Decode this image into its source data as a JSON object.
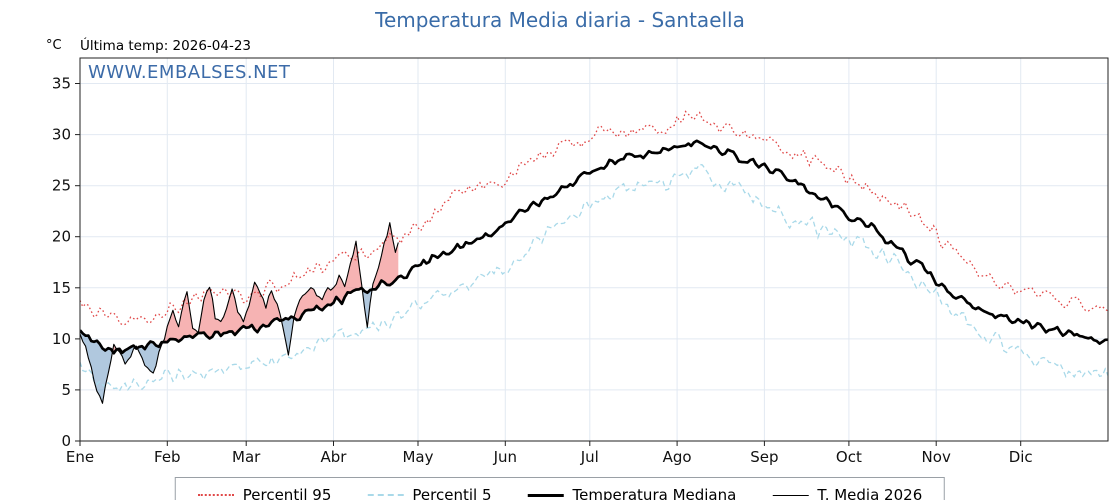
{
  "header": {
    "title": "Temperatura Media diaria - Santaella",
    "unit": "°C",
    "last_temp": "Última temp: 2026-04-23",
    "watermark": "WWW.EMBALSES.NET"
  },
  "legend": [
    {
      "label": "Percentil 95",
      "style": "dotted",
      "color": "#e04848"
    },
    {
      "label": "Percentil 5",
      "style": "dashed",
      "color": "#a9d9e9"
    },
    {
      "label": "Temperatura Mediana",
      "style": "solid-thick",
      "color": "#000000"
    },
    {
      "label": "T. Media 2026",
      "style": "solid-thin",
      "color": "#000000"
    }
  ],
  "chart_data": {
    "type": "line",
    "title": "Temperatura Media diaria - Santaella",
    "xlabel": "",
    "ylabel": "°C",
    "ylim": [
      0,
      37.5
    ],
    "yticks": [
      0,
      5,
      10,
      15,
      20,
      25,
      30,
      35
    ],
    "months": [
      "Ene",
      "Feb",
      "Mar",
      "Abr",
      "May",
      "Jun",
      "Jul",
      "Ago",
      "Sep",
      "Oct",
      "Nov",
      "Dic"
    ],
    "month_start_days": [
      0,
      31,
      59,
      90,
      120,
      151,
      181,
      212,
      243,
      273,
      304,
      334
    ],
    "days_total": 365,
    "anchor_step_days": 10,
    "grid": true,
    "legend_position": "bottom",
    "series": [
      {
        "name": "Percentil 95",
        "color": "#e04848",
        "style": "dotted",
        "anchors": [
          13.5,
          11.8,
          11.5,
          12.8,
          13.8,
          14.8,
          14.2,
          15.2,
          16.2,
          17.4,
          18.4,
          19.6,
          20.8,
          23.6,
          24.4,
          25.6,
          27.4,
          28.6,
          29.6,
          30.4,
          30.6,
          31.0,
          32.0,
          30.6,
          29.6,
          28.6,
          27.6,
          26.0,
          24.6,
          23.0,
          21.2,
          18.6,
          16.6,
          15.0,
          14.2,
          13.6,
          13.2
        ]
      },
      {
        "name": "Percentil 5",
        "color": "#a9d9e9",
        "style": "dashed",
        "anchors": [
          8.0,
          5.0,
          5.6,
          6.2,
          6.6,
          7.0,
          7.4,
          7.8,
          8.6,
          10.0,
          11.0,
          11.6,
          13.0,
          14.4,
          15.4,
          17.0,
          19.0,
          21.0,
          23.0,
          24.4,
          25.0,
          25.4,
          26.6,
          25.0,
          23.6,
          22.0,
          21.0,
          20.0,
          19.0,
          17.6,
          15.0,
          12.6,
          10.6,
          9.0,
          8.0,
          7.0,
          6.6
        ]
      },
      {
        "name": "Temperatura Mediana",
        "color": "#000000",
        "style": "solid-thick",
        "anchors": [
          10.5,
          8.8,
          9.2,
          9.6,
          10.2,
          10.6,
          11.0,
          11.6,
          12.6,
          13.6,
          14.6,
          15.6,
          17.0,
          18.4,
          19.6,
          21.0,
          23.0,
          24.6,
          26.0,
          27.4,
          28.0,
          28.6,
          29.4,
          28.2,
          27.2,
          26.0,
          24.6,
          22.6,
          21.0,
          19.0,
          16.6,
          14.2,
          12.8,
          11.8,
          11.2,
          10.6,
          10.0
        ]
      }
    ],
    "current_year_series": {
      "name": "T. Media 2026",
      "color": "#000000",
      "style": "solid-thin",
      "last_day": 113,
      "points": [
        [
          0,
          10.4
        ],
        [
          2,
          9.2
        ],
        [
          4,
          7.0
        ],
        [
          6,
          4.8
        ],
        [
          8,
          3.8
        ],
        [
          10,
          6.5
        ],
        [
          12,
          9.6
        ],
        [
          14,
          8.6
        ],
        [
          16,
          7.6
        ],
        [
          18,
          8.2
        ],
        [
          20,
          9.4
        ],
        [
          22,
          8.2
        ],
        [
          24,
          7.0
        ],
        [
          26,
          6.6
        ],
        [
          28,
          8.6
        ],
        [
          30,
          10.2
        ],
        [
          33,
          12.8
        ],
        [
          35,
          11.4
        ],
        [
          38,
          14.6
        ],
        [
          40,
          11.2
        ],
        [
          42,
          10.6
        ],
        [
          44,
          13.8
        ],
        [
          46,
          15.3
        ],
        [
          48,
          12.2
        ],
        [
          50,
          11.6
        ],
        [
          52,
          13.2
        ],
        [
          54,
          15.0
        ],
        [
          56,
          12.6
        ],
        [
          58,
          11.8
        ],
        [
          60,
          13.2
        ],
        [
          62,
          15.6
        ],
        [
          64,
          14.2
        ],
        [
          66,
          13.2
        ],
        [
          68,
          14.8
        ],
        [
          70,
          13.4
        ],
        [
          72,
          11.2
        ],
        [
          74,
          8.6
        ],
        [
          76,
          12.2
        ],
        [
          78,
          13.8
        ],
        [
          80,
          14.2
        ],
        [
          82,
          15.2
        ],
        [
          84,
          14.2
        ],
        [
          86,
          13.6
        ],
        [
          88,
          15.2
        ],
        [
          90,
          14.8
        ],
        [
          92,
          16.2
        ],
        [
          94,
          15.2
        ],
        [
          96,
          17.2
        ],
        [
          98,
          19.8
        ],
        [
          100,
          15.2
        ],
        [
          102,
          11.2
        ],
        [
          104,
          15.6
        ],
        [
          106,
          17.2
        ],
        [
          108,
          19.2
        ],
        [
          110,
          21.3
        ],
        [
          112,
          18.6
        ],
        [
          113,
          19.6
        ]
      ]
    },
    "fill_above_color": "#f08080",
    "fill_below_color": "#7ba3c8",
    "accent_color": "#3a6ca8"
  }
}
